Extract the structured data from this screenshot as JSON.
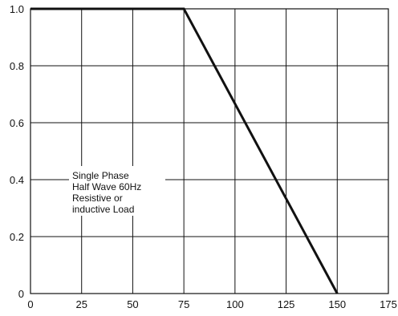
{
  "chart_data": {
    "type": "line",
    "title": "",
    "xlabel": "",
    "ylabel": "",
    "xlim": [
      0,
      175
    ],
    "ylim": [
      0,
      1.0
    ],
    "x_ticks": [
      0,
      25,
      50,
      75,
      100,
      125,
      150,
      175
    ],
    "y_ticks": [
      0,
      0.2,
      0.4,
      0.6,
      0.8,
      1.0
    ],
    "x_tick_labels": [
      "0",
      "25",
      "50",
      "75",
      "100",
      "125",
      "150",
      "175"
    ],
    "y_tick_labels": [
      "0",
      "0.2",
      "0.4",
      "0.6",
      "0.8",
      "1.0"
    ],
    "grid": true,
    "legend": "none",
    "series": [
      {
        "x": [
          0,
          75,
          150
        ],
        "y": [
          1.0,
          1.0,
          0
        ]
      }
    ],
    "annotations": {
      "line_1": "Single Phase",
      "line_2": "Half Wave 60Hz",
      "line_3": "Resistive or",
      "line_4": "inductive Load"
    },
    "colors": {
      "axis": "#111111",
      "grid": "#111111",
      "line": "#111111",
      "background": "#ffffff"
    }
  }
}
